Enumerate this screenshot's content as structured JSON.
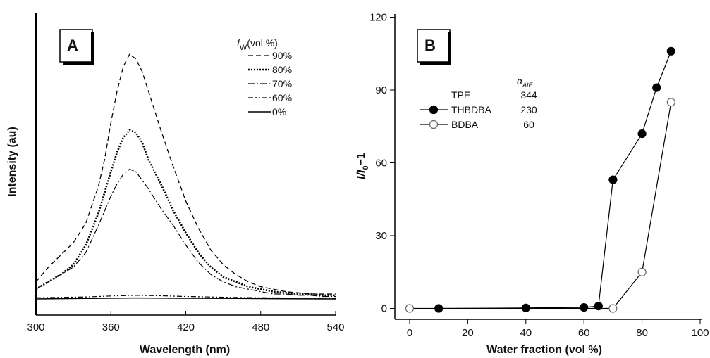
{
  "chart_data": [
    {
      "panel_label": "A",
      "type": "line",
      "xlabel": "Wavelength (nm)",
      "ylabel": "Intensity (au)",
      "xlim": [
        300,
        540
      ],
      "xticks": [
        "300",
        "360",
        "420",
        "480",
        "540"
      ],
      "legend_title_main": "f",
      "legend_title_sub": "W",
      "legend_title_rest": "(vol %)",
      "grid": false,
      "legend_position": "top-right",
      "series": [
        {
          "name": "90%",
          "style": "dashed",
          "x": [
            300,
            310,
            320,
            330,
            340,
            350,
            355,
            360,
            365,
            370,
            375,
            380,
            385,
            390,
            400,
            410,
            420,
            430,
            440,
            450,
            460,
            470,
            480,
            490,
            500,
            510,
            520,
            530,
            540
          ],
          "y": [
            0.07,
            0.13,
            0.18,
            0.23,
            0.31,
            0.46,
            0.57,
            0.72,
            0.85,
            0.95,
            1.0,
            0.98,
            0.93,
            0.85,
            0.69,
            0.54,
            0.4,
            0.29,
            0.2,
            0.14,
            0.1,
            0.07,
            0.05,
            0.04,
            0.03,
            0.025,
            0.02,
            0.02,
            0.02
          ]
        },
        {
          "name": "80%",
          "style": "dotted",
          "x": [
            300,
            310,
            320,
            330,
            340,
            350,
            360,
            365,
            370,
            375,
            380,
            385,
            390,
            400,
            410,
            420,
            430,
            440,
            450,
            460,
            470,
            480,
            490,
            500,
            510,
            520,
            530,
            540
          ],
          "y": [
            0.04,
            0.07,
            0.1,
            0.14,
            0.22,
            0.35,
            0.52,
            0.6,
            0.66,
            0.69,
            0.68,
            0.64,
            0.57,
            0.47,
            0.36,
            0.27,
            0.19,
            0.13,
            0.09,
            0.07,
            0.05,
            0.04,
            0.03,
            0.025,
            0.02,
            0.02,
            0.015,
            0.015
          ]
        },
        {
          "name": "70%",
          "style": "dashdot",
          "x": [
            300,
            310,
            320,
            330,
            340,
            350,
            360,
            365,
            370,
            375,
            380,
            390,
            400,
            410,
            420,
            430,
            440,
            450,
            460,
            470,
            480,
            490,
            500,
            510,
            520,
            530,
            540
          ],
          "y": [
            0.04,
            0.07,
            0.1,
            0.13,
            0.19,
            0.3,
            0.42,
            0.47,
            0.51,
            0.53,
            0.52,
            0.45,
            0.37,
            0.3,
            0.22,
            0.15,
            0.1,
            0.07,
            0.05,
            0.04,
            0.03,
            0.02,
            0.02,
            0.015,
            0.015,
            0.01,
            0.01
          ]
        },
        {
          "name": "60%",
          "style": "dashdotdot",
          "x": [
            300,
            340,
            360,
            380,
            400,
            420,
            460,
            500,
            540
          ],
          "y": [
            0.005,
            0.008,
            0.012,
            0.015,
            0.013,
            0.01,
            0.006,
            0.004,
            0.003
          ]
        },
        {
          "name": "0%",
          "style": "solid",
          "x": [
            300,
            340,
            380,
            420,
            460,
            500,
            540
          ],
          "y": [
            0.0,
            0.002,
            0.004,
            0.003,
            0.002,
            0.001,
            0.0
          ]
        }
      ]
    },
    {
      "panel_label": "B",
      "type": "line",
      "xlabel": "Water fraction  (vol %)",
      "ylabel_parts": [
        "I",
        "/",
        "I",
        "0",
        "−1"
      ],
      "xlim": [
        -5,
        100
      ],
      "ylim": [
        -5,
        120
      ],
      "xticks": [
        0,
        20,
        40,
        60,
        80,
        100
      ],
      "yticks": [
        0,
        30,
        60,
        90,
        120
      ],
      "grid": false,
      "legend_position": "top-left",
      "legend_alpha_header": "α",
      "legend_alpha_sub": "AIE",
      "legend_rows": [
        {
          "name": "TPE",
          "value": "344",
          "marker": "none"
        },
        {
          "name": "THBDBA",
          "value": "230",
          "marker": "filled"
        },
        {
          "name": "BDBA",
          "value": "60",
          "marker": "open"
        }
      ],
      "series": [
        {
          "name": "THBDBA",
          "marker": "filled",
          "x": [
            10,
            40,
            60,
            65,
            70,
            80,
            85,
            90
          ],
          "y": [
            0,
            0.2,
            0.4,
            1,
            53,
            72,
            91,
            106
          ]
        },
        {
          "name": "BDBA",
          "marker": "open",
          "x": [
            0,
            70,
            80,
            90
          ],
          "y": [
            0,
            0,
            15,
            85
          ]
        }
      ]
    }
  ]
}
